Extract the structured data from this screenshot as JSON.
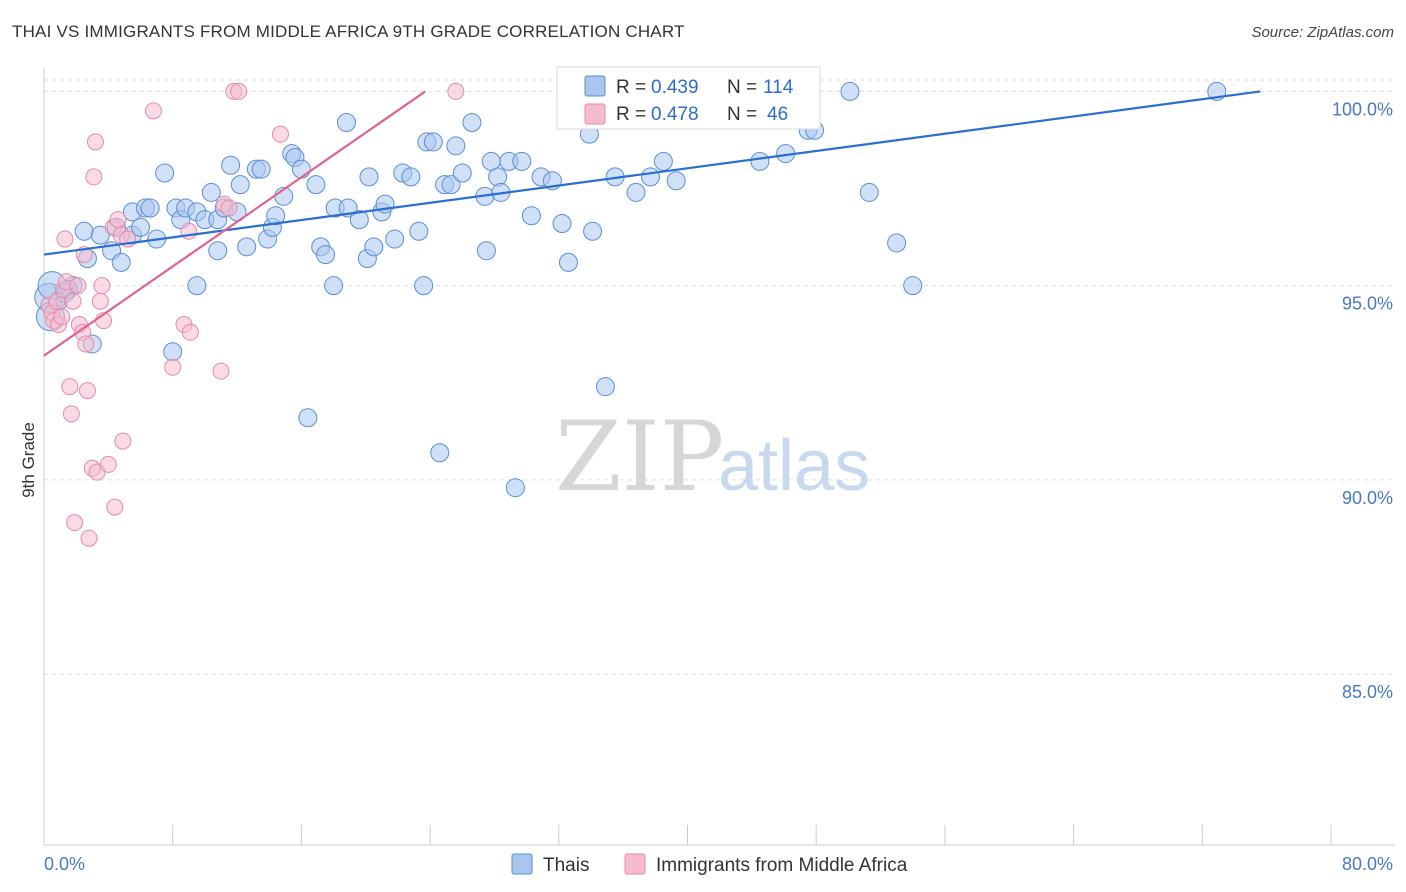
{
  "title": "THAI VS IMMIGRANTS FROM MIDDLE AFRICA 9TH GRADE CORRELATION CHART",
  "source": "Source: ZipAtlas.com",
  "watermark": {
    "zip": "ZIP",
    "atlas": "atlas"
  },
  "colors": {
    "blue_fill": "#a9c6ee",
    "blue_stroke": "#5b8ed6",
    "blue_line": "#2a6fd0",
    "pink_fill": "#f5bcd0",
    "pink_stroke": "#e58aa8",
    "pink_line": "#e0628e",
    "tick_label": "#4a78c2",
    "grid": "#dddddd"
  },
  "legend": {
    "rows": [
      {
        "r_label": "R =",
        "r_value": "0.439",
        "n_label": "N =",
        "n_value": "114"
      },
      {
        "r_label": "R =",
        "r_value": "0.478",
        "n_label": "N =",
        "n_value": "46"
      }
    ]
  },
  "bottom_legend": [
    "Thais",
    "Immigrants from Middle Africa"
  ],
  "chart_data": {
    "type": "scatter",
    "title": "THAI VS IMMIGRANTS FROM MIDDLE AFRICA 9TH GRADE CORRELATION CHART",
    "xlabel": "",
    "ylabel": "9th Grade",
    "xlim": [
      0,
      80
    ],
    "ylim": [
      80.5,
      100.5
    ],
    "x_tick_labels": [
      "0.0%",
      "80.0%"
    ],
    "y_ticks": [
      85,
      90,
      95,
      100
    ],
    "y_tick_labels": [
      "85.0%",
      "90.0%",
      "95.0%",
      "100.0%"
    ],
    "grid": "horizontal dashed",
    "legend_placement": "top-center",
    "series": [
      {
        "name": "Thais",
        "r": 0.439,
        "n": 114,
        "trend": {
          "x": [
            0,
            75.6
          ],
          "y": [
            95.8,
            100
          ]
        },
        "points": [
          [
            0.3,
            94.7
          ],
          [
            0.5,
            95.0
          ],
          [
            0.4,
            94.2
          ],
          [
            1.8,
            95.0
          ],
          [
            1.5,
            94.9
          ],
          [
            3.0,
            93.5
          ],
          [
            2.5,
            96.4
          ],
          [
            3.5,
            96.3
          ],
          [
            4.2,
            95.9
          ],
          [
            4.8,
            95.6
          ],
          [
            4.5,
            96.5
          ],
          [
            5.5,
            96.3
          ],
          [
            5.5,
            96.9
          ],
          [
            6.3,
            97.0
          ],
          [
            6.6,
            97.0
          ],
          [
            7.0,
            96.2
          ],
          [
            7.5,
            97.9
          ],
          [
            8.0,
            93.3
          ],
          [
            8.2,
            97.0
          ],
          [
            8.5,
            96.7
          ],
          [
            8.8,
            97.0
          ],
          [
            9.5,
            96.9
          ],
          [
            9.5,
            95.0
          ],
          [
            10.0,
            96.7
          ],
          [
            10.4,
            97.4
          ],
          [
            10.8,
            96.7
          ],
          [
            11.2,
            97.0
          ],
          [
            11.6,
            98.1
          ],
          [
            12.2,
            97.6
          ],
          [
            12.6,
            96.0
          ],
          [
            13.2,
            98.0
          ],
          [
            13.5,
            98.0
          ],
          [
            13.9,
            96.2
          ],
          [
            14.2,
            96.5
          ],
          [
            14.4,
            96.8
          ],
          [
            14.9,
            97.3
          ],
          [
            15.4,
            98.4
          ],
          [
            15.6,
            98.3
          ],
          [
            16.0,
            98.0
          ],
          [
            16.4,
            91.6
          ],
          [
            16.9,
            97.6
          ],
          [
            17.2,
            96.0
          ],
          [
            17.5,
            95.8
          ],
          [
            18.0,
            95.0
          ],
          [
            18.1,
            97.0
          ],
          [
            18.8,
            99.2
          ],
          [
            18.9,
            97.0
          ],
          [
            19.6,
            96.7
          ],
          [
            20.1,
            95.7
          ],
          [
            20.2,
            97.8
          ],
          [
            20.5,
            96.0
          ],
          [
            21.0,
            96.9
          ],
          [
            21.2,
            97.1
          ],
          [
            21.8,
            96.2
          ],
          [
            22.3,
            97.9
          ],
          [
            22.8,
            97.8
          ],
          [
            23.3,
            96.4
          ],
          [
            23.6,
            95.0
          ],
          [
            23.8,
            98.7
          ],
          [
            24.2,
            98.7
          ],
          [
            24.6,
            90.7
          ],
          [
            24.9,
            97.6
          ],
          [
            25.3,
            97.6
          ],
          [
            25.6,
            98.6
          ],
          [
            26.0,
            97.9
          ],
          [
            26.6,
            99.2
          ],
          [
            27.4,
            97.3
          ],
          [
            27.5,
            95.9
          ],
          [
            27.8,
            98.2
          ],
          [
            28.2,
            97.8
          ],
          [
            28.4,
            97.4
          ],
          [
            28.9,
            98.2
          ],
          [
            29.3,
            89.8
          ],
          [
            29.7,
            98.2
          ],
          [
            30.3,
            96.8
          ],
          [
            30.9,
            97.8
          ],
          [
            31.6,
            97.7
          ],
          [
            32.2,
            96.6
          ],
          [
            32.6,
            95.6
          ],
          [
            33.3,
            100.0
          ],
          [
            33.9,
            98.9
          ],
          [
            34.1,
            96.4
          ],
          [
            34.7,
            99.9
          ],
          [
            34.9,
            92.4
          ],
          [
            35.2,
            99.3
          ],
          [
            35.5,
            97.8
          ],
          [
            36.2,
            100.0
          ],
          [
            36.8,
            97.4
          ],
          [
            37.7,
            97.8
          ],
          [
            37.9,
            99.9
          ],
          [
            38.5,
            98.2
          ],
          [
            39.3,
            97.7
          ],
          [
            40.6,
            100.0
          ],
          [
            41.3,
            100.0
          ],
          [
            42.6,
            100.0
          ],
          [
            44.5,
            98.2
          ],
          [
            46.1,
            98.4
          ],
          [
            47.5,
            99.0
          ],
          [
            47.9,
            99.0
          ],
          [
            50.1,
            100.0
          ],
          [
            51.3,
            97.4
          ],
          [
            53.0,
            96.1
          ],
          [
            54.0,
            95.0
          ],
          [
            72.9,
            100.0
          ],
          [
            0.9,
            94.6
          ],
          [
            1.3,
            94.8
          ],
          [
            2.7,
            95.7
          ],
          [
            6.0,
            96.5
          ],
          [
            10.8,
            95.9
          ],
          [
            12.0,
            96.9
          ]
        ]
      },
      {
        "name": "Immigrants from Middle Africa",
        "r": 0.478,
        "n": 46,
        "trend": {
          "x": [
            0,
            23.7
          ],
          "y": [
            93.2,
            100
          ]
        },
        "points": [
          [
            0.3,
            94.5
          ],
          [
            0.5,
            94.3
          ],
          [
            0.6,
            94.1
          ],
          [
            0.8,
            94.6
          ],
          [
            0.9,
            94.0
          ],
          [
            1.1,
            94.2
          ],
          [
            1.2,
            94.9
          ],
          [
            1.3,
            96.2
          ],
          [
            1.4,
            95.1
          ],
          [
            1.6,
            92.4
          ],
          [
            1.7,
            91.7
          ],
          [
            1.8,
            94.6
          ],
          [
            1.9,
            88.9
          ],
          [
            2.1,
            95.0
          ],
          [
            2.2,
            94.0
          ],
          [
            2.4,
            93.8
          ],
          [
            2.5,
            95.8
          ],
          [
            2.6,
            93.5
          ],
          [
            2.7,
            92.3
          ],
          [
            2.8,
            88.5
          ],
          [
            3.0,
            90.3
          ],
          [
            3.1,
            97.8
          ],
          [
            3.2,
            98.7
          ],
          [
            3.3,
            90.2
          ],
          [
            3.5,
            94.6
          ],
          [
            3.6,
            95.0
          ],
          [
            3.7,
            94.1
          ],
          [
            4.0,
            90.4
          ],
          [
            4.3,
            96.5
          ],
          [
            4.4,
            89.3
          ],
          [
            4.6,
            96.7
          ],
          [
            4.8,
            96.3
          ],
          [
            4.9,
            91.0
          ],
          [
            5.2,
            96.2
          ],
          [
            6.8,
            99.5
          ],
          [
            8.0,
            92.9
          ],
          [
            8.7,
            94.0
          ],
          [
            9.0,
            96.4
          ],
          [
            9.1,
            93.8
          ],
          [
            11.0,
            92.8
          ],
          [
            11.2,
            97.1
          ],
          [
            11.5,
            97.0
          ],
          [
            11.8,
            100.0
          ],
          [
            12.1,
            100.0
          ],
          [
            14.7,
            98.9
          ],
          [
            25.6,
            100.0
          ]
        ]
      }
    ]
  }
}
